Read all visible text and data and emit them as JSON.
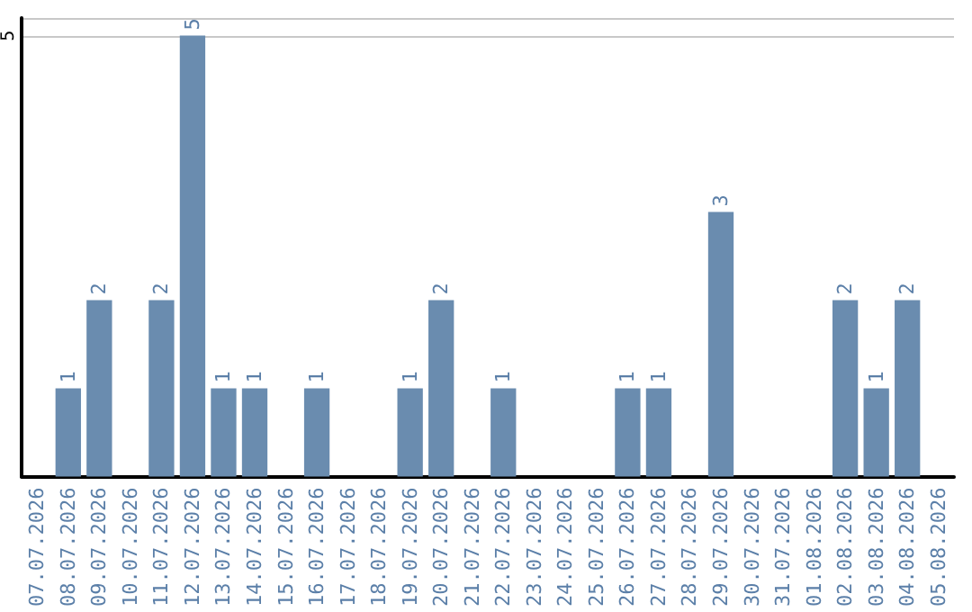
{
  "chart_data": {
    "type": "bar",
    "categories": [
      "07.07.2026",
      "08.07.2026",
      "09.07.2026",
      "10.07.2026",
      "11.07.2026",
      "12.07.2026",
      "13.07.2026",
      "14.07.2026",
      "15.07.2026",
      "16.07.2026",
      "17.07.2026",
      "18.07.2026",
      "19.07.2026",
      "20.07.2026",
      "21.07.2026",
      "22.07.2026",
      "23.07.2026",
      "24.07.2026",
      "25.07.2026",
      "26.07.2026",
      "27.07.2026",
      "28.07.2026",
      "29.07.2026",
      "30.07.2026",
      "31.07.2026",
      "01.08.2026",
      "02.08.2026",
      "03.08.2026",
      "04.08.2026",
      "05.08.2026"
    ],
    "values": [
      0,
      1,
      2,
      0,
      2,
      5,
      1,
      1,
      0,
      1,
      0,
      0,
      1,
      2,
      0,
      1,
      0,
      0,
      0,
      1,
      1,
      0,
      3,
      0,
      0,
      0,
      2,
      1,
      2,
      0
    ],
    "value_labels": [
      null,
      "1",
      "2",
      null,
      "2",
      "5",
      "1",
      "1",
      null,
      "1",
      null,
      null,
      "1",
      "2",
      null,
      "1",
      null,
      null,
      null,
      "1",
      "1",
      null,
      "3",
      null,
      null,
      null,
      "2",
      "1",
      "2",
      null
    ],
    "color": "#6a8caf",
    "ylim": [
      0,
      5.2
    ],
    "yticks": [
      5
    ],
    "grid": "y"
  }
}
